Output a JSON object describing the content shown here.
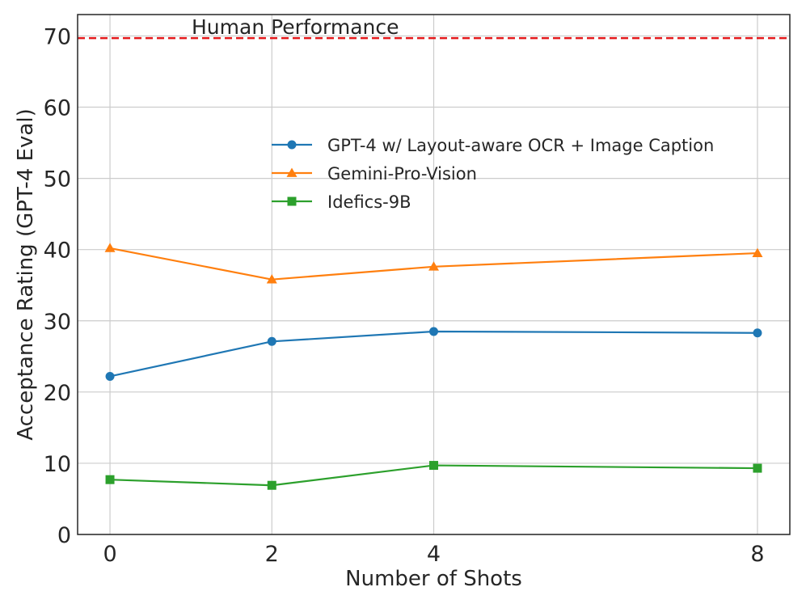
{
  "chart_data": {
    "type": "line",
    "title": "",
    "xlabel": "Number of Shots",
    "ylabel": "Acceptance Rating (GPT-4 Eval)",
    "x": [
      0,
      2,
      4,
      8
    ],
    "x_tick_labels": [
      "0",
      "2",
      "4",
      "8"
    ],
    "xlim": [
      -0.4,
      8.4
    ],
    "ylim": [
      0,
      73
    ],
    "y_ticks": [
      0,
      10,
      20,
      30,
      40,
      50,
      60,
      70
    ],
    "y_tick_labels": [
      "0",
      "10",
      "20",
      "30",
      "40",
      "50",
      "60",
      "70"
    ],
    "grid": true,
    "legend_position": "center-right",
    "series": [
      {
        "name": "GPT-4 w/ Layout-aware OCR + Image Caption",
        "color": "#1f77b4",
        "marker": "circle",
        "values": [
          22.2,
          27.1,
          28.5,
          28.3
        ]
      },
      {
        "name": "Gemini-Pro-Vision",
        "color": "#ff7f0e",
        "marker": "triangle",
        "values": [
          40.2,
          35.8,
          37.6,
          39.5
        ]
      },
      {
        "name": "Idefics-9B",
        "color": "#2ca02c",
        "marker": "square",
        "values": [
          7.7,
          6.9,
          9.7,
          9.3
        ]
      }
    ],
    "reference_line": {
      "label": "Human Performance",
      "value": 69.7,
      "color": "#e41a1c"
    }
  }
}
